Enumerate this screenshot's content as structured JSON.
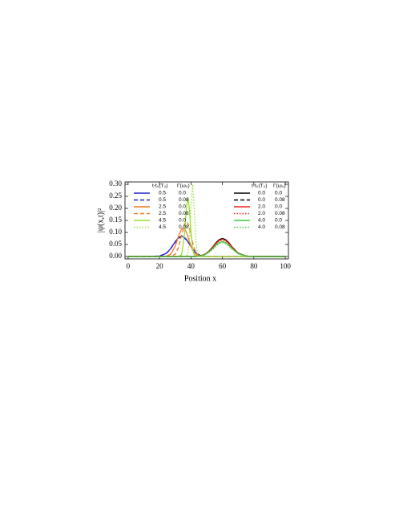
{
  "chart_data": {
    "type": "line",
    "xlabel": "Position x",
    "ylabel": "|ψ(x,t)|²",
    "legend_header": [
      "t-t₀(T₀)",
      "Γ(ω₀)"
    ],
    "xlim": [
      -2,
      102
    ],
    "xticks": [
      0,
      20,
      40,
      60,
      80,
      100
    ],
    "ylim": [
      -0.01,
      0.31
    ],
    "yticks": [
      {
        "value": 0,
        "label": "0.00"
      },
      {
        "value": 0.05,
        "label": "0.05"
      },
      {
        "value": 0.1,
        "label": "0.10"
      },
      {
        "value": 0.15,
        "label": "0.15"
      },
      {
        "value": 0.2,
        "label": "0.20"
      },
      {
        "value": 0.25,
        "label": "0.25"
      },
      {
        "value": 0.3,
        "label": "0.30"
      }
    ],
    "x": [
      0,
      10,
      20,
      24,
      27,
      30,
      32,
      34,
      36,
      37,
      38,
      39,
      40,
      41,
      42,
      43,
      44,
      46,
      48,
      50,
      52,
      54,
      56,
      58,
      60,
      62,
      64,
      66,
      70,
      75,
      80,
      90,
      100
    ],
    "series": [
      {
        "name": "0.5",
        "gamma": "0.0",
        "legend": "left",
        "color": "#1f1fc8",
        "dash": "solid",
        "values": [
          0,
          0,
          0.002,
          0.012,
          0.032,
          0.062,
          0.078,
          0.085,
          0.078,
          0.071,
          0.062,
          0.052,
          0.041,
          0.032,
          0.024,
          0.017,
          0.012,
          0.005,
          0.002,
          0,
          0,
          0,
          0,
          0,
          0,
          0,
          0,
          0,
          0,
          0,
          0,
          0,
          0
        ]
      },
      {
        "name": "0.5",
        "gamma": "0.08",
        "legend": "left",
        "color": "#1f1fc8",
        "dash": "dashed",
        "values": [
          0,
          0,
          0.002,
          0.011,
          0.031,
          0.06,
          0.076,
          0.083,
          0.076,
          0.069,
          0.06,
          0.051,
          0.04,
          0.031,
          0.023,
          0.016,
          0.011,
          0.005,
          0.002,
          0,
          0,
          0,
          0,
          0,
          0,
          0,
          0,
          0,
          0,
          0,
          0,
          0,
          0
        ]
      },
      {
        "name": "2.5",
        "gamma": "0.0",
        "legend": "left",
        "color": "#f07820",
        "dash": "solid",
        "values": [
          0,
          0,
          0,
          0.001,
          0.009,
          0.043,
          0.083,
          0.115,
          0.115,
          0.102,
          0.083,
          0.062,
          0.043,
          0.028,
          0.016,
          0.009,
          0.004,
          0.001,
          0,
          0,
          0,
          0,
          0,
          0,
          0,
          0,
          0,
          0,
          0,
          0,
          0,
          0,
          0
        ]
      },
      {
        "name": "2.5",
        "gamma": "0.08",
        "legend": "left",
        "color": "#f07820",
        "dash": "dashed",
        "values": [
          0,
          0,
          0,
          0,
          0.001,
          0.01,
          0.036,
          0.088,
          0.137,
          0.145,
          0.137,
          0.116,
          0.088,
          0.06,
          0.036,
          0.02,
          0.01,
          0.002,
          0,
          0,
          0,
          0,
          0,
          0,
          0,
          0,
          0,
          0,
          0,
          0,
          0,
          0,
          0
        ]
      },
      {
        "name": "4.5",
        "gamma": "0.0",
        "legend": "left",
        "color": "#99e033",
        "dash": "solid",
        "values": [
          0,
          0,
          0,
          0,
          0,
          0,
          0,
          0.007,
          0.101,
          0.196,
          0.245,
          0.196,
          0.101,
          0.033,
          0.007,
          0.001,
          0,
          0,
          0,
          0,
          0,
          0,
          0,
          0,
          0,
          0,
          0,
          0,
          0,
          0,
          0,
          0,
          0
        ]
      },
      {
        "name": "4.5",
        "gamma": "0.08",
        "legend": "left",
        "color": "#99e033",
        "dash": "dotted",
        "values": [
          0,
          0,
          0,
          0,
          0,
          0,
          0,
          0,
          0,
          0.001,
          0.013,
          0.075,
          0.212,
          0.3,
          0.212,
          0.075,
          0.013,
          0,
          0,
          0,
          0,
          0,
          0,
          0,
          0,
          0,
          0,
          0,
          0,
          0,
          0,
          0,
          0
        ]
      },
      {
        "name": "0.0",
        "gamma": "0.0",
        "legend": "right",
        "color": "#000000",
        "dash": "solid",
        "values": [
          0,
          0,
          0,
          0,
          0,
          0,
          0,
          0,
          0,
          0,
          0,
          0,
          0,
          0,
          0,
          0,
          0.001,
          0.003,
          0.007,
          0.014,
          0.026,
          0.041,
          0.058,
          0.07,
          0.075,
          0.07,
          0.058,
          0.041,
          0.014,
          0.002,
          0,
          0,
          0
        ]
      },
      {
        "name": "0.0",
        "gamma": "0.08",
        "legend": "right",
        "color": "#000000",
        "dash": "dashed",
        "values": [
          0,
          0,
          0,
          0,
          0,
          0,
          0,
          0,
          0,
          0,
          0,
          0,
          0,
          0,
          0,
          0,
          0.001,
          0.003,
          0.007,
          0.014,
          0.026,
          0.041,
          0.057,
          0.069,
          0.074,
          0.069,
          0.057,
          0.041,
          0.014,
          0.002,
          0,
          0,
          0
        ]
      },
      {
        "name": "2.0",
        "gamma": "0.0",
        "legend": "right",
        "color": "#e8281c",
        "dash": "solid",
        "values": [
          0,
          0,
          0,
          0,
          0,
          0,
          0,
          0,
          0,
          0,
          0,
          0,
          0,
          0,
          0,
          0,
          0.001,
          0.003,
          0.007,
          0.013,
          0.025,
          0.04,
          0.055,
          0.067,
          0.072,
          0.067,
          0.055,
          0.04,
          0.013,
          0.002,
          0,
          0,
          0
        ]
      },
      {
        "name": "2.0",
        "gamma": "0.08",
        "legend": "right",
        "color": "#e8281c",
        "dash": "dotted",
        "values": [
          0,
          0,
          0,
          0,
          0,
          0,
          0,
          0,
          0,
          0,
          0,
          0,
          0,
          0,
          0,
          0,
          0.001,
          0.003,
          0.007,
          0.014,
          0.025,
          0.039,
          0.054,
          0.065,
          0.069,
          0.065,
          0.054,
          0.039,
          0.014,
          0.002,
          0,
          0,
          0
        ]
      },
      {
        "name": "4.0",
        "gamma": "0.0",
        "legend": "right",
        "color": "#3fc83f",
        "dash": "solid",
        "values": [
          0,
          0,
          0,
          0,
          0,
          0,
          0,
          0,
          0,
          0,
          0,
          0,
          0,
          0,
          0,
          0,
          0.001,
          0.003,
          0.006,
          0.012,
          0.022,
          0.034,
          0.048,
          0.058,
          0.062,
          0.058,
          0.048,
          0.034,
          0.012,
          0.002,
          0,
          0,
          0
        ]
      },
      {
        "name": "4.0",
        "gamma": "0.08",
        "legend": "right",
        "color": "#3fc83f",
        "dash": "dotted",
        "values": [
          0,
          0,
          0,
          0,
          0,
          0,
          0,
          0,
          0,
          0,
          0,
          0,
          0,
          0,
          0,
          0,
          0.001,
          0.002,
          0.005,
          0.011,
          0.02,
          0.031,
          0.044,
          0.053,
          0.057,
          0.053,
          0.044,
          0.031,
          0.011,
          0.002,
          0,
          0,
          0
        ]
      }
    ]
  }
}
